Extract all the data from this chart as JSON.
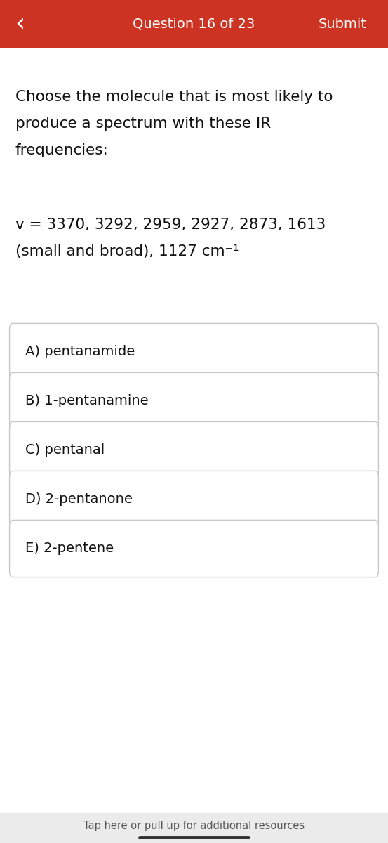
{
  "header_bg_color": "#cc3322",
  "header_text_color": "#ffffff",
  "header_label": "Question 16 of 23",
  "header_submit": "Submit",
  "header_back_arrow": "‹",
  "bg_color": "#ffffff",
  "question_text_line1": "Choose the molecule that is most likely to",
  "question_text_line2": "produce a spectrum with these IR",
  "question_text_line3": "frequencies:",
  "freq_line1": "v = 3370, 3292, 2959, 2927, 2873, 1613",
  "freq_line2": "(small and broad), 1127 cm⁻¹",
  "choices": [
    "A) pentanamide",
    "B) 1-pentanamine",
    "C) pentanal",
    "D) 2-pentanone",
    "E) 2-pentene"
  ],
  "choice_border_color": "#c8c8c8",
  "choice_bg_color": "#ffffff",
  "choice_text_color": "#111111",
  "footer_text": "Tap here or pull up for additional resources",
  "footer_bg_color": "#ebebeb",
  "footer_line_color": "#333333",
  "text_color": "#111111",
  "fig_width": 5.53,
  "fig_height": 12.0,
  "dpi": 100
}
